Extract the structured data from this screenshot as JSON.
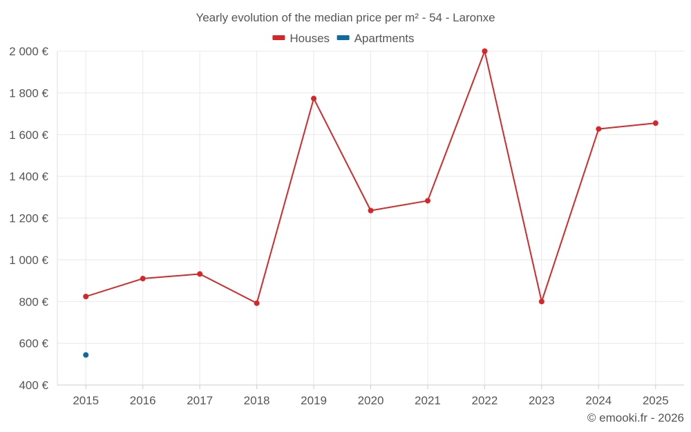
{
  "chart_data": {
    "type": "line",
    "title": "Yearly evolution of the median price per m² - 54 - Laronxe",
    "categories": [
      "2015",
      "2016",
      "2017",
      "2018",
      "2019",
      "2020",
      "2021",
      "2022",
      "2023",
      "2024",
      "2025"
    ],
    "series": [
      {
        "name": "Houses",
        "color": "#d62728",
        "values": [
          824,
          910,
          932,
          792,
          1773,
          1236,
          1283,
          2000,
          800,
          1627,
          1655
        ]
      },
      {
        "name": "Apartments",
        "color": "#0f6aa0",
        "values": [
          544,
          null,
          null,
          null,
          null,
          null,
          null,
          null,
          null,
          null,
          null
        ]
      }
    ],
    "ylim": [
      400,
      2000
    ],
    "yticks": [
      400,
      600,
      800,
      1000,
      1200,
      1400,
      1600,
      1800,
      2000
    ],
    "ytick_labels": [
      "400 €",
      "600 €",
      "800 €",
      "1 000 €",
      "1 200 €",
      "1 400 €",
      "1 600 €",
      "1 800 €",
      "2 000 €"
    ],
    "xlabel": "",
    "ylabel": "",
    "legend_position": "top-center",
    "grid": true
  },
  "footer": {
    "credit": "© emooki.fr - 2026"
  },
  "colors": {
    "grid": "#e8e8e8",
    "axis_text": "#555555"
  }
}
